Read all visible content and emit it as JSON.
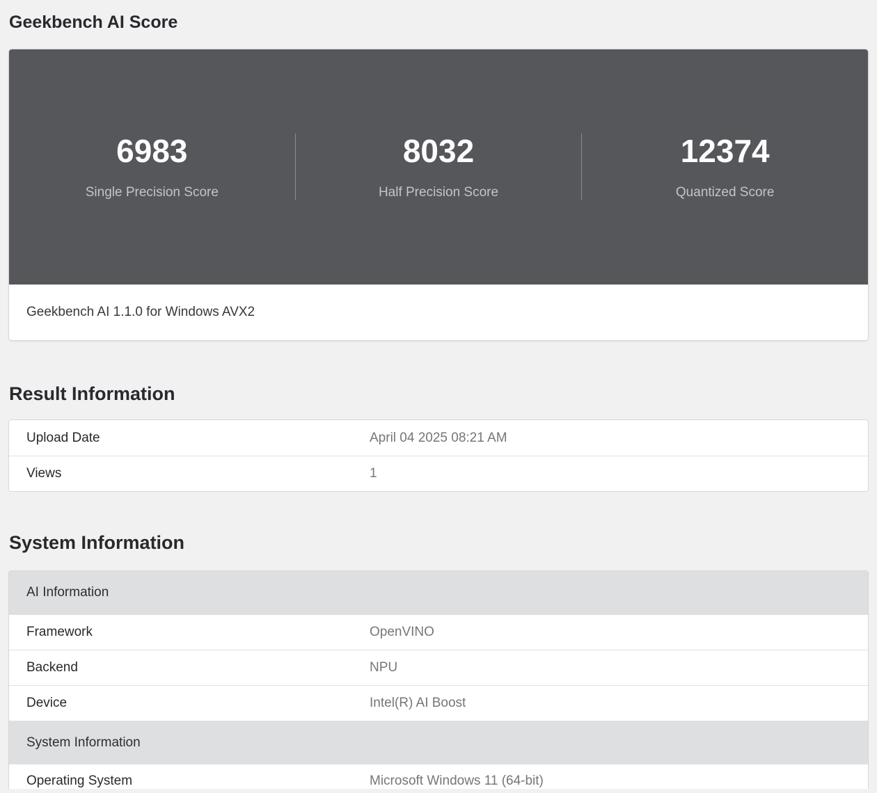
{
  "page": {
    "title": "Geekbench AI Score"
  },
  "score_card": {
    "scores": [
      {
        "value": "6983",
        "label": "Single Precision Score"
      },
      {
        "value": "8032",
        "label": "Half Precision Score"
      },
      {
        "value": "12374",
        "label": "Quantized Score"
      }
    ],
    "footer": "Geekbench AI 1.1.0 for Windows AVX2"
  },
  "result_information": {
    "heading": "Result Information",
    "rows": [
      {
        "label": "Upload Date",
        "value": "April 04 2025 08:21 AM"
      },
      {
        "label": "Views",
        "value": "1"
      }
    ]
  },
  "system_information": {
    "heading": "System Information",
    "sections": [
      {
        "header": "AI Information",
        "rows": [
          {
            "label": "Framework",
            "value": "OpenVINO"
          },
          {
            "label": "Backend",
            "value": "NPU"
          },
          {
            "label": "Device",
            "value": "Intel(R) AI Boost"
          }
        ]
      },
      {
        "header": "System Information",
        "rows": [
          {
            "label": "Operating System",
            "value": "Microsoft Windows 11 (64-bit)"
          }
        ]
      }
    ]
  },
  "colors": {
    "page_background": "#f1f1f2",
    "score_strip_background": "#56575b",
    "score_value_text": "#fcfcfd",
    "score_label_text": "#c3c4c6",
    "table_header_background": "#dedfe0",
    "table_border": "#d5d7d9",
    "value_text": "#757679",
    "heading_text": "#27292c"
  }
}
